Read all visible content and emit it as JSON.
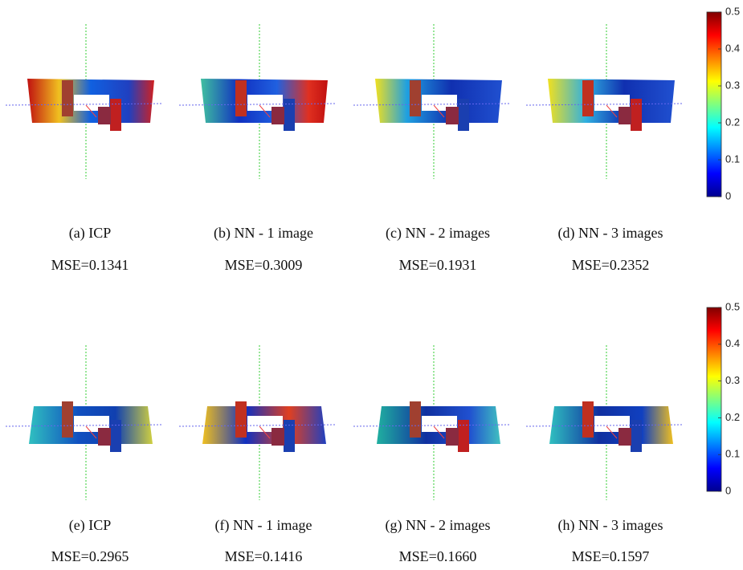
{
  "rows": [
    {
      "panels": [
        {
          "caption": "(a) ICP",
          "mse": "MSE=0.1341"
        },
        {
          "caption": "(b) NN - 1 image",
          "mse": "MSE=0.3009"
        },
        {
          "caption": "(c) NN - 2 images",
          "mse": "MSE=0.1931"
        },
        {
          "caption": "(d) NN - 3 images",
          "mse": "MSE=0.2352"
        }
      ],
      "colorbar": {
        "ticks": [
          0,
          0.1,
          0.2,
          0.3,
          0.4,
          0.5
        ]
      }
    },
    {
      "panels": [
        {
          "caption": "(e) ICP",
          "mse": "MSE=0.2965"
        },
        {
          "caption": "(f) NN - 1 image",
          "mse": "MSE=0.1416"
        },
        {
          "caption": "(g) NN - 2 images",
          "mse": "MSE=0.1660"
        },
        {
          "caption": "(h) NN - 3 images",
          "mse": "MSE=0.1597"
        }
      ],
      "colorbar": {
        "ticks": [
          0,
          0.1,
          0.2,
          0.3,
          0.4,
          0.5
        ]
      }
    }
  ]
}
